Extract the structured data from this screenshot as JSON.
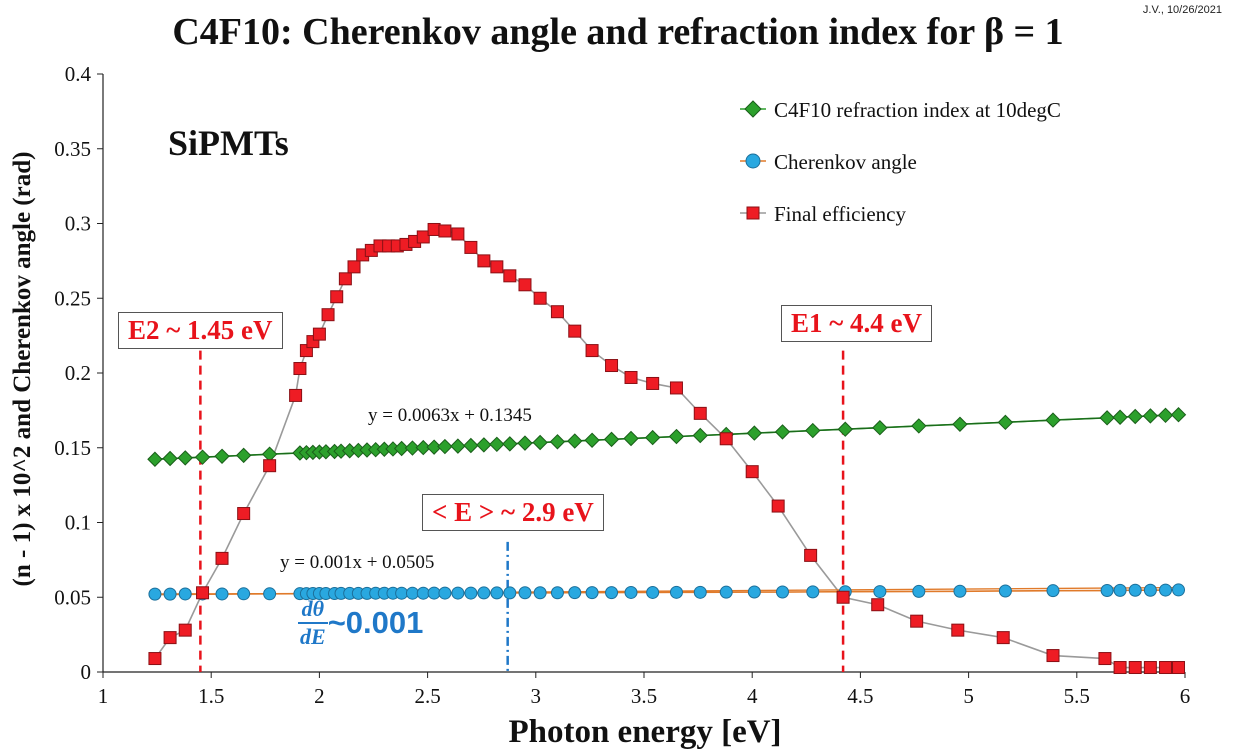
{
  "header": {
    "title": "C4F10: Cherenkov angle and refraction index for β = 1",
    "credit": "J.V., 10/26/2021"
  },
  "annotations": {
    "sipm_label": "SiPMTs",
    "e2_box": "E2 ~ 1.45 eV",
    "e1_box": "E1 ~ 4.4 eV",
    "mean_box": "< E > ~ 2.9 eV",
    "fit_refraction": "y = 0.0063x + 0.1345",
    "fit_angle": "y = 0.001x + 0.0505",
    "deriv_num": "dθ",
    "deriv_den": "dE",
    "deriv_value": "~0.001"
  },
  "colors": {
    "green": "#2ca02c",
    "blue": "#29a8e0",
    "red": "#ee1c24",
    "marker_line": "#9a9a9a",
    "fit_green": "#1b6b1b",
    "fit_orange": "#e07a2a",
    "dashed_red": "#e8131b",
    "dashdot_blue": "#1f78c8"
  },
  "chart_data": {
    "type": "scatter",
    "title": "C4F10: Cherenkov angle and refraction index for β = 1",
    "xlabel": "Photon energy [eV]",
    "ylabel": "(n - 1) x 10^2 and Cherenkov angle (rad)",
    "xlim": [
      1,
      6
    ],
    "ylim": [
      0,
      0.4
    ],
    "xticks": [
      1,
      1.5,
      2,
      2.5,
      3,
      3.5,
      4,
      4.5,
      5,
      5.5,
      6
    ],
    "xtick_labels": [
      "1",
      "1.5",
      "2",
      "2.5",
      "3",
      "3.5",
      "4",
      "4.5",
      "5",
      "5.5",
      "6"
    ],
    "yticks": [
      0,
      0.05,
      0.1,
      0.15,
      0.2,
      0.25,
      0.3,
      0.35,
      0.4
    ],
    "ytick_labels": [
      "0",
      "0.05",
      "0.1",
      "0.15",
      "0.2",
      "0.25",
      "0.3",
      "0.35",
      "0.4"
    ],
    "legend_position": "top-right",
    "series": [
      {
        "name": "C4F10 refraction index at 10degC",
        "marker": "diamond",
        "color": "#2ca02c",
        "x": [
          1.24,
          1.31,
          1.38,
          1.46,
          1.55,
          1.65,
          1.77,
          1.91,
          1.94,
          1.97,
          2.0,
          2.03,
          2.07,
          2.1,
          2.14,
          2.18,
          2.22,
          2.26,
          2.3,
          2.34,
          2.38,
          2.43,
          2.48,
          2.53,
          2.58,
          2.64,
          2.7,
          2.76,
          2.82,
          2.88,
          2.95,
          3.02,
          3.1,
          3.18,
          3.26,
          3.35,
          3.44,
          3.54,
          3.65,
          3.76,
          3.88,
          4.01,
          4.14,
          4.28,
          4.43,
          4.59,
          4.77,
          4.96,
          5.17,
          5.39,
          5.64,
          5.7,
          5.77,
          5.84,
          5.91,
          5.97
        ],
        "y": [
          0.1423,
          0.1428,
          0.1432,
          0.1437,
          0.1443,
          0.1449,
          0.1457,
          0.1465,
          0.1467,
          0.1469,
          0.1471,
          0.1473,
          0.1475,
          0.1477,
          0.148,
          0.1482,
          0.1485,
          0.1487,
          0.149,
          0.1492,
          0.1495,
          0.1498,
          0.1501,
          0.1504,
          0.1508,
          0.1511,
          0.1515,
          0.1519,
          0.1523,
          0.1526,
          0.1531,
          0.1535,
          0.154,
          0.1545,
          0.155,
          0.1556,
          0.1562,
          0.1568,
          0.1575,
          0.1582,
          0.1589,
          0.1598,
          0.1606,
          0.1615,
          0.1624,
          0.1634,
          0.1646,
          0.1657,
          0.167,
          0.1685,
          0.17,
          0.1704,
          0.1709,
          0.1713,
          0.1717,
          0.1721
        ]
      },
      {
        "name": "Cherenkov angle",
        "marker": "circle",
        "color": "#29a8e0",
        "x": [
          1.24,
          1.31,
          1.38,
          1.46,
          1.55,
          1.65,
          1.77,
          1.91,
          1.94,
          1.97,
          2.0,
          2.03,
          2.07,
          2.1,
          2.14,
          2.18,
          2.22,
          2.26,
          2.3,
          2.34,
          2.38,
          2.43,
          2.48,
          2.53,
          2.58,
          2.64,
          2.7,
          2.76,
          2.82,
          2.88,
          2.95,
          3.02,
          3.1,
          3.18,
          3.26,
          3.35,
          3.44,
          3.54,
          3.65,
          3.76,
          3.88,
          4.01,
          4.14,
          4.28,
          4.43,
          4.59,
          4.77,
          4.96,
          5.17,
          5.39,
          5.64,
          5.7,
          5.77,
          5.84,
          5.91,
          5.97
        ],
        "y": [
          0.0521,
          0.0521,
          0.0522,
          0.0522,
          0.0522,
          0.0523,
          0.0523,
          0.0524,
          0.0524,
          0.0525,
          0.0525,
          0.0525,
          0.0525,
          0.0526,
          0.0526,
          0.0526,
          0.0526,
          0.0527,
          0.0527,
          0.0527,
          0.0527,
          0.0527,
          0.0527,
          0.0528,
          0.0528,
          0.0528,
          0.0528,
          0.0529,
          0.0529,
          0.0529,
          0.053,
          0.053,
          0.053,
          0.0531,
          0.0531,
          0.0531,
          0.0532,
          0.0532,
          0.0533,
          0.0533,
          0.0534,
          0.0535,
          0.0535,
          0.0536,
          0.0537,
          0.0538,
          0.0539,
          0.054,
          0.0542,
          0.0544,
          0.0545,
          0.0546,
          0.0547,
          0.0547,
          0.0548,
          0.0549
        ]
      },
      {
        "name": "Final efficiency",
        "marker": "square",
        "color": "#ee1c24",
        "x": [
          1.24,
          1.31,
          1.38,
          1.46,
          1.55,
          1.65,
          1.77,
          1.89,
          1.91,
          1.94,
          1.97,
          2.0,
          2.04,
          2.08,
          2.12,
          2.16,
          2.2,
          2.24,
          2.28,
          2.32,
          2.36,
          2.4,
          2.44,
          2.48,
          2.53,
          2.58,
          2.64,
          2.7,
          2.76,
          2.82,
          2.88,
          2.95,
          3.02,
          3.1,
          3.18,
          3.26,
          3.35,
          3.44,
          3.54,
          3.65,
          3.76,
          3.88,
          4.0,
          4.12,
          4.27,
          4.42,
          4.58,
          4.76,
          4.95,
          5.16,
          5.39,
          5.63,
          5.7,
          5.77,
          5.84,
          5.91,
          5.97
        ],
        "y": [
          0.009,
          0.023,
          0.028,
          0.053,
          0.076,
          0.106,
          0.138,
          0.185,
          0.203,
          0.215,
          0.221,
          0.226,
          0.239,
          0.251,
          0.263,
          0.271,
          0.279,
          0.282,
          0.285,
          0.285,
          0.285,
          0.286,
          0.288,
          0.291,
          0.296,
          0.295,
          0.293,
          0.284,
          0.275,
          0.271,
          0.265,
          0.259,
          0.25,
          0.241,
          0.228,
          0.215,
          0.205,
          0.197,
          0.193,
          0.19,
          0.173,
          0.156,
          0.134,
          0.111,
          0.078,
          0.05,
          0.045,
          0.034,
          0.028,
          0.023,
          0.011,
          0.009,
          0.003,
          0.003,
          0.003,
          0.003,
          0.003
        ]
      }
    ],
    "trendlines": [
      {
        "series": "C4F10 refraction index at 10degC",
        "slope": 0.0063,
        "intercept": 0.1345,
        "x_range": [
          1.24,
          5.97
        ]
      },
      {
        "series": "Cherenkov angle",
        "slope": 0.001,
        "intercept": 0.0505,
        "x_range": [
          1.24,
          5.97
        ]
      }
    ],
    "vertical_markers": [
      {
        "x": 1.45,
        "style": "dashed",
        "color": "#e8131b",
        "y_top": 0.215
      },
      {
        "x": 4.42,
        "style": "dashed",
        "color": "#e8131b",
        "y_top": 0.215
      },
      {
        "x": 2.87,
        "style": "dashdot",
        "color": "#1f78c8",
        "y_top": 0.087
      }
    ]
  }
}
